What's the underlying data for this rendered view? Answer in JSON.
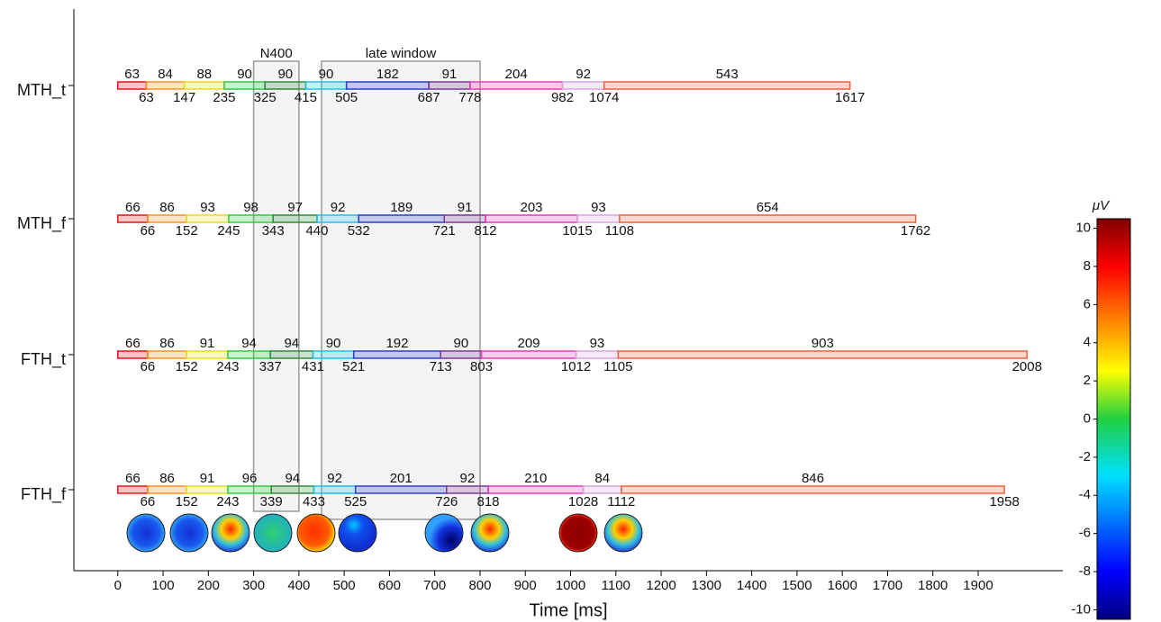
{
  "chart_data": {
    "type": "timeline",
    "xlabel": "Time [ms]",
    "xlim": [
      -97,
      2087
    ],
    "xticks": [
      0,
      100,
      200,
      300,
      400,
      500,
      600,
      700,
      800,
      900,
      1000,
      1100,
      1200,
      1300,
      1400,
      1500,
      1600,
      1700,
      1800,
      1900
    ],
    "segment_colors": [
      "#e8141c",
      "#f7931e",
      "#e8dc20",
      "#2ecc40",
      "#2e8b3a",
      "#20c0e8",
      "#2a3fd0",
      "#7a3a9a",
      "#e93bb5",
      "#d9a6e0",
      "#f2603a"
    ],
    "series": [
      {
        "name": "MTH_t",
        "values": [
          63,
          84,
          88,
          90,
          90,
          90,
          182,
          91,
          204,
          92,
          543
        ],
        "ends": [
          63,
          147,
          235,
          325,
          415,
          505,
          687,
          778,
          982,
          1074,
          1617
        ]
      },
      {
        "name": "MTH_f",
        "values": [
          66,
          86,
          93,
          98,
          97,
          92,
          189,
          91,
          203,
          93,
          654
        ],
        "ends": [
          66,
          152,
          245,
          343,
          440,
          532,
          721,
          812,
          1015,
          1108,
          1762
        ]
      },
      {
        "name": "FTH_t",
        "values": [
          66,
          86,
          91,
          94,
          94,
          90,
          192,
          90,
          209,
          93,
          903
        ],
        "ends": [
          66,
          152,
          243,
          337,
          431,
          521,
          713,
          803,
          1012,
          1105,
          2008
        ]
      },
      {
        "name": "FTH_f",
        "values": [
          66,
          86,
          91,
          96,
          94,
          92,
          201,
          92,
          210,
          84,
          846
        ],
        "ends": [
          66,
          152,
          243,
          339,
          433,
          525,
          726,
          818,
          1028,
          1112,
          1958
        ]
      }
    ],
    "windows": [
      {
        "label": "N400",
        "start": 300,
        "end": 400
      },
      {
        "label": "late window",
        "start": 450,
        "end": 800
      }
    ],
    "colorbar": {
      "label": "μV",
      "lim": [
        -10.5,
        10.5
      ],
      "ticks": [
        10,
        8,
        6,
        4,
        2,
        0,
        -2,
        -4,
        -6,
        -8,
        -10
      ]
    }
  }
}
